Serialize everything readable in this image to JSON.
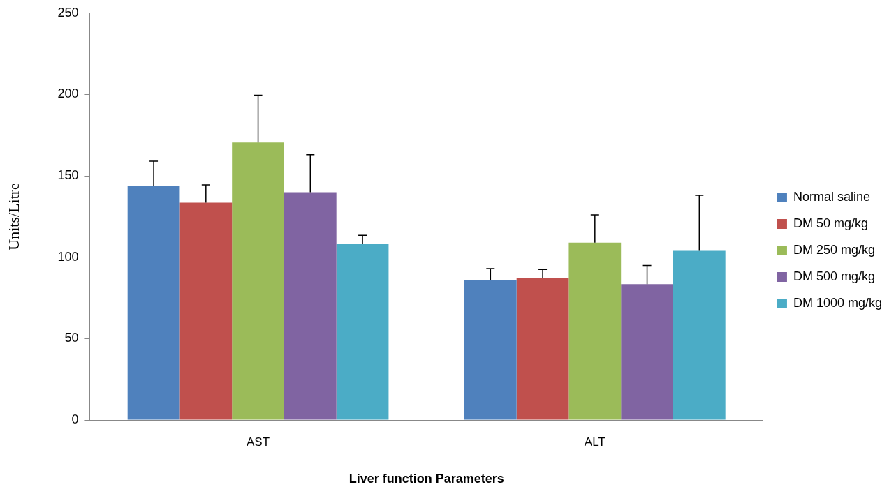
{
  "chart_data": {
    "type": "bar",
    "xlabel": "Liver function Parameters",
    "ylabel": "Units/Litre",
    "categories": [
      "AST",
      "ALT"
    ],
    "series": [
      {
        "name": "Normal saline",
        "color": "#4f81bd",
        "values": [
          144,
          86
        ],
        "errors": [
          [
            144,
            159
          ],
          [
            86,
            93
          ]
        ]
      },
      {
        "name": "DM 50 mg/kg",
        "color": "#c0504d",
        "values": [
          133.5,
          87
        ],
        "errors": [
          [
            133.5,
            144.5
          ],
          [
            87,
            92.5
          ]
        ]
      },
      {
        "name": "DM 250 mg/kg",
        "color": "#9bbb59",
        "values": [
          170.5,
          109
        ],
        "errors": [
          [
            170.5,
            199.5
          ],
          [
            109,
            126
          ]
        ]
      },
      {
        "name": "DM 500 mg/kg",
        "color": "#8064a2",
        "values": [
          140,
          83.5
        ],
        "errors": [
          [
            140,
            163
          ],
          [
            83.5,
            95
          ]
        ]
      },
      {
        "name": "DM 1000 mg/kg",
        "color": "#4bacc6",
        "values": [
          108,
          104
        ],
        "errors": [
          [
            108,
            113.5
          ],
          [
            104,
            138
          ]
        ]
      }
    ],
    "ylim": [
      0,
      250
    ],
    "yticks": [
      0,
      50,
      100,
      150,
      200,
      250
    ],
    "grid": false,
    "legend": "right"
  }
}
